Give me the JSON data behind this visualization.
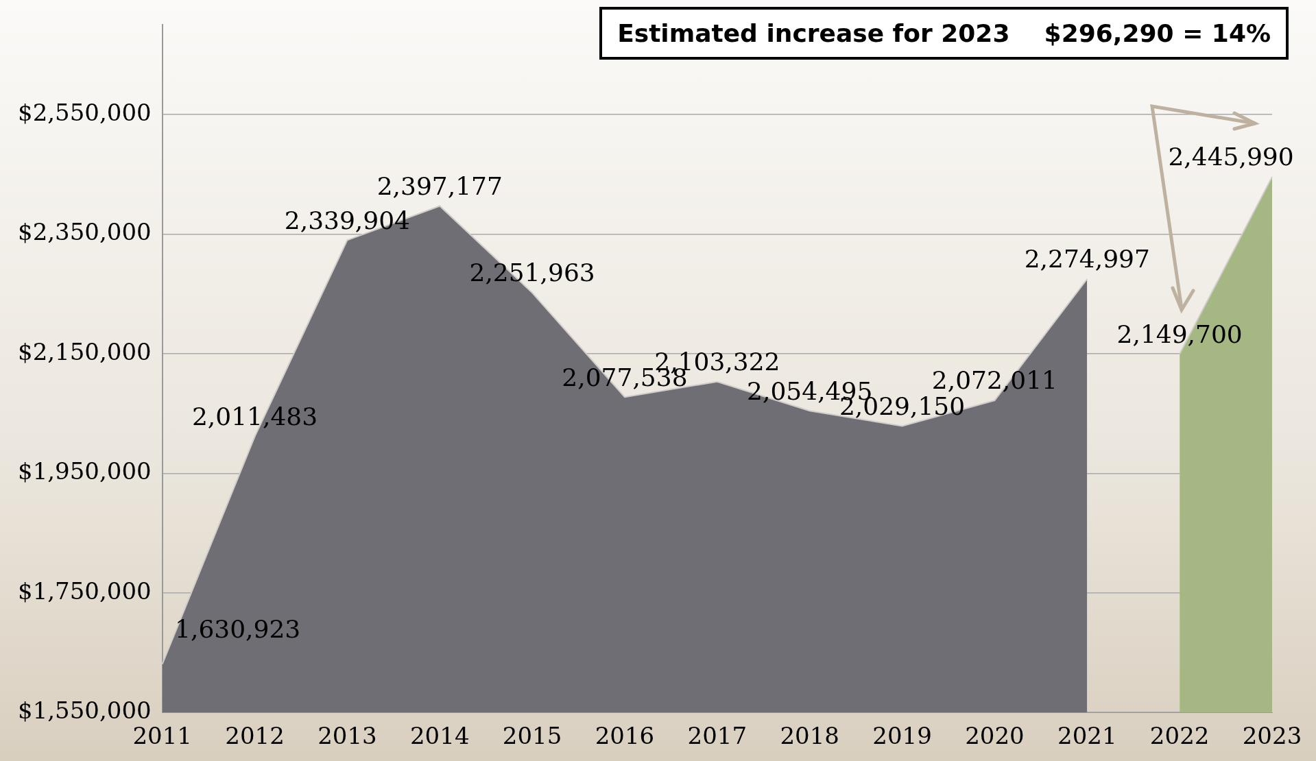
{
  "chart_data": {
    "type": "area",
    "categories": [
      "2011",
      "2012",
      "2013",
      "2014",
      "2015",
      "2016",
      "2017",
      "2018",
      "2019",
      "2020",
      "2021",
      "2022",
      "2023"
    ],
    "series": [
      {
        "color": "#6f6e74",
        "values": [
          1630923,
          2011483,
          2339904,
          2397177,
          2251963,
          2077538,
          2103322,
          2054495,
          2029150,
          2072011,
          2274997,
          null,
          null
        ],
        "value_labels": [
          "1,630,923",
          "2,011,483",
          "2,339,904",
          "2,397,177",
          "2,251,963",
          "2,077,538",
          "2,103,322",
          "2,054,495",
          "2,029,150",
          "2,072,011",
          "2,274,997",
          null,
          null
        ]
      },
      {
        "color": "#a5b884",
        "values": [
          null,
          null,
          null,
          null,
          null,
          null,
          null,
          null,
          null,
          null,
          null,
          2149700,
          2445990
        ],
        "value_labels": [
          null,
          null,
          null,
          null,
          null,
          null,
          null,
          null,
          null,
          null,
          null,
          "2,149,700",
          "2,445,990"
        ]
      }
    ],
    "ylim": [
      1550000,
      2700000
    ],
    "yticks": [
      {
        "value": 1550000,
        "label": "$1,550,000"
      },
      {
        "value": 1750000,
        "label": "$1,750,000"
      },
      {
        "value": 1950000,
        "label": "$1,950,000"
      },
      {
        "value": 2150000,
        "label": "$2,150,000"
      },
      {
        "value": 2350000,
        "label": "$2,350,000"
      },
      {
        "value": 2550000,
        "label": "$2,550,000"
      }
    ],
    "grid": "y",
    "legend": false,
    "annotations": [
      "Estimated increase for 2023    $296,290 = 14%"
    ]
  }
}
